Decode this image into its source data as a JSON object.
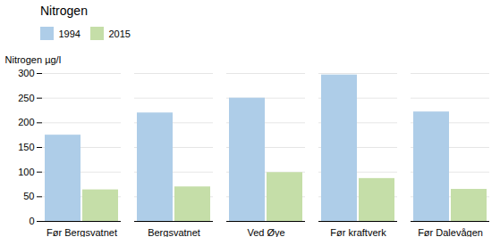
{
  "chart_data": {
    "type": "bar",
    "categories": [
      "Før Bergsvatnet",
      "Bergsvatnet",
      "Ved Øye",
      "Før kraftverk",
      "Før Dalevågen"
    ],
    "series": [
      {
        "name": "1994",
        "color": "#aecde8",
        "values": [
          175,
          220,
          250,
          297,
          222
        ]
      },
      {
        "name": "2015",
        "color": "#c5dea8",
        "values": [
          64,
          70,
          99,
          87,
          65
        ]
      }
    ],
    "ylabel": "Nitrogen µg/l",
    "legend_title": "Nitrogen",
    "legend": "top",
    "ylim": [
      0,
      300
    ],
    "yticks": [
      0,
      50,
      100,
      150,
      200,
      250,
      300
    ],
    "grid": true
  }
}
